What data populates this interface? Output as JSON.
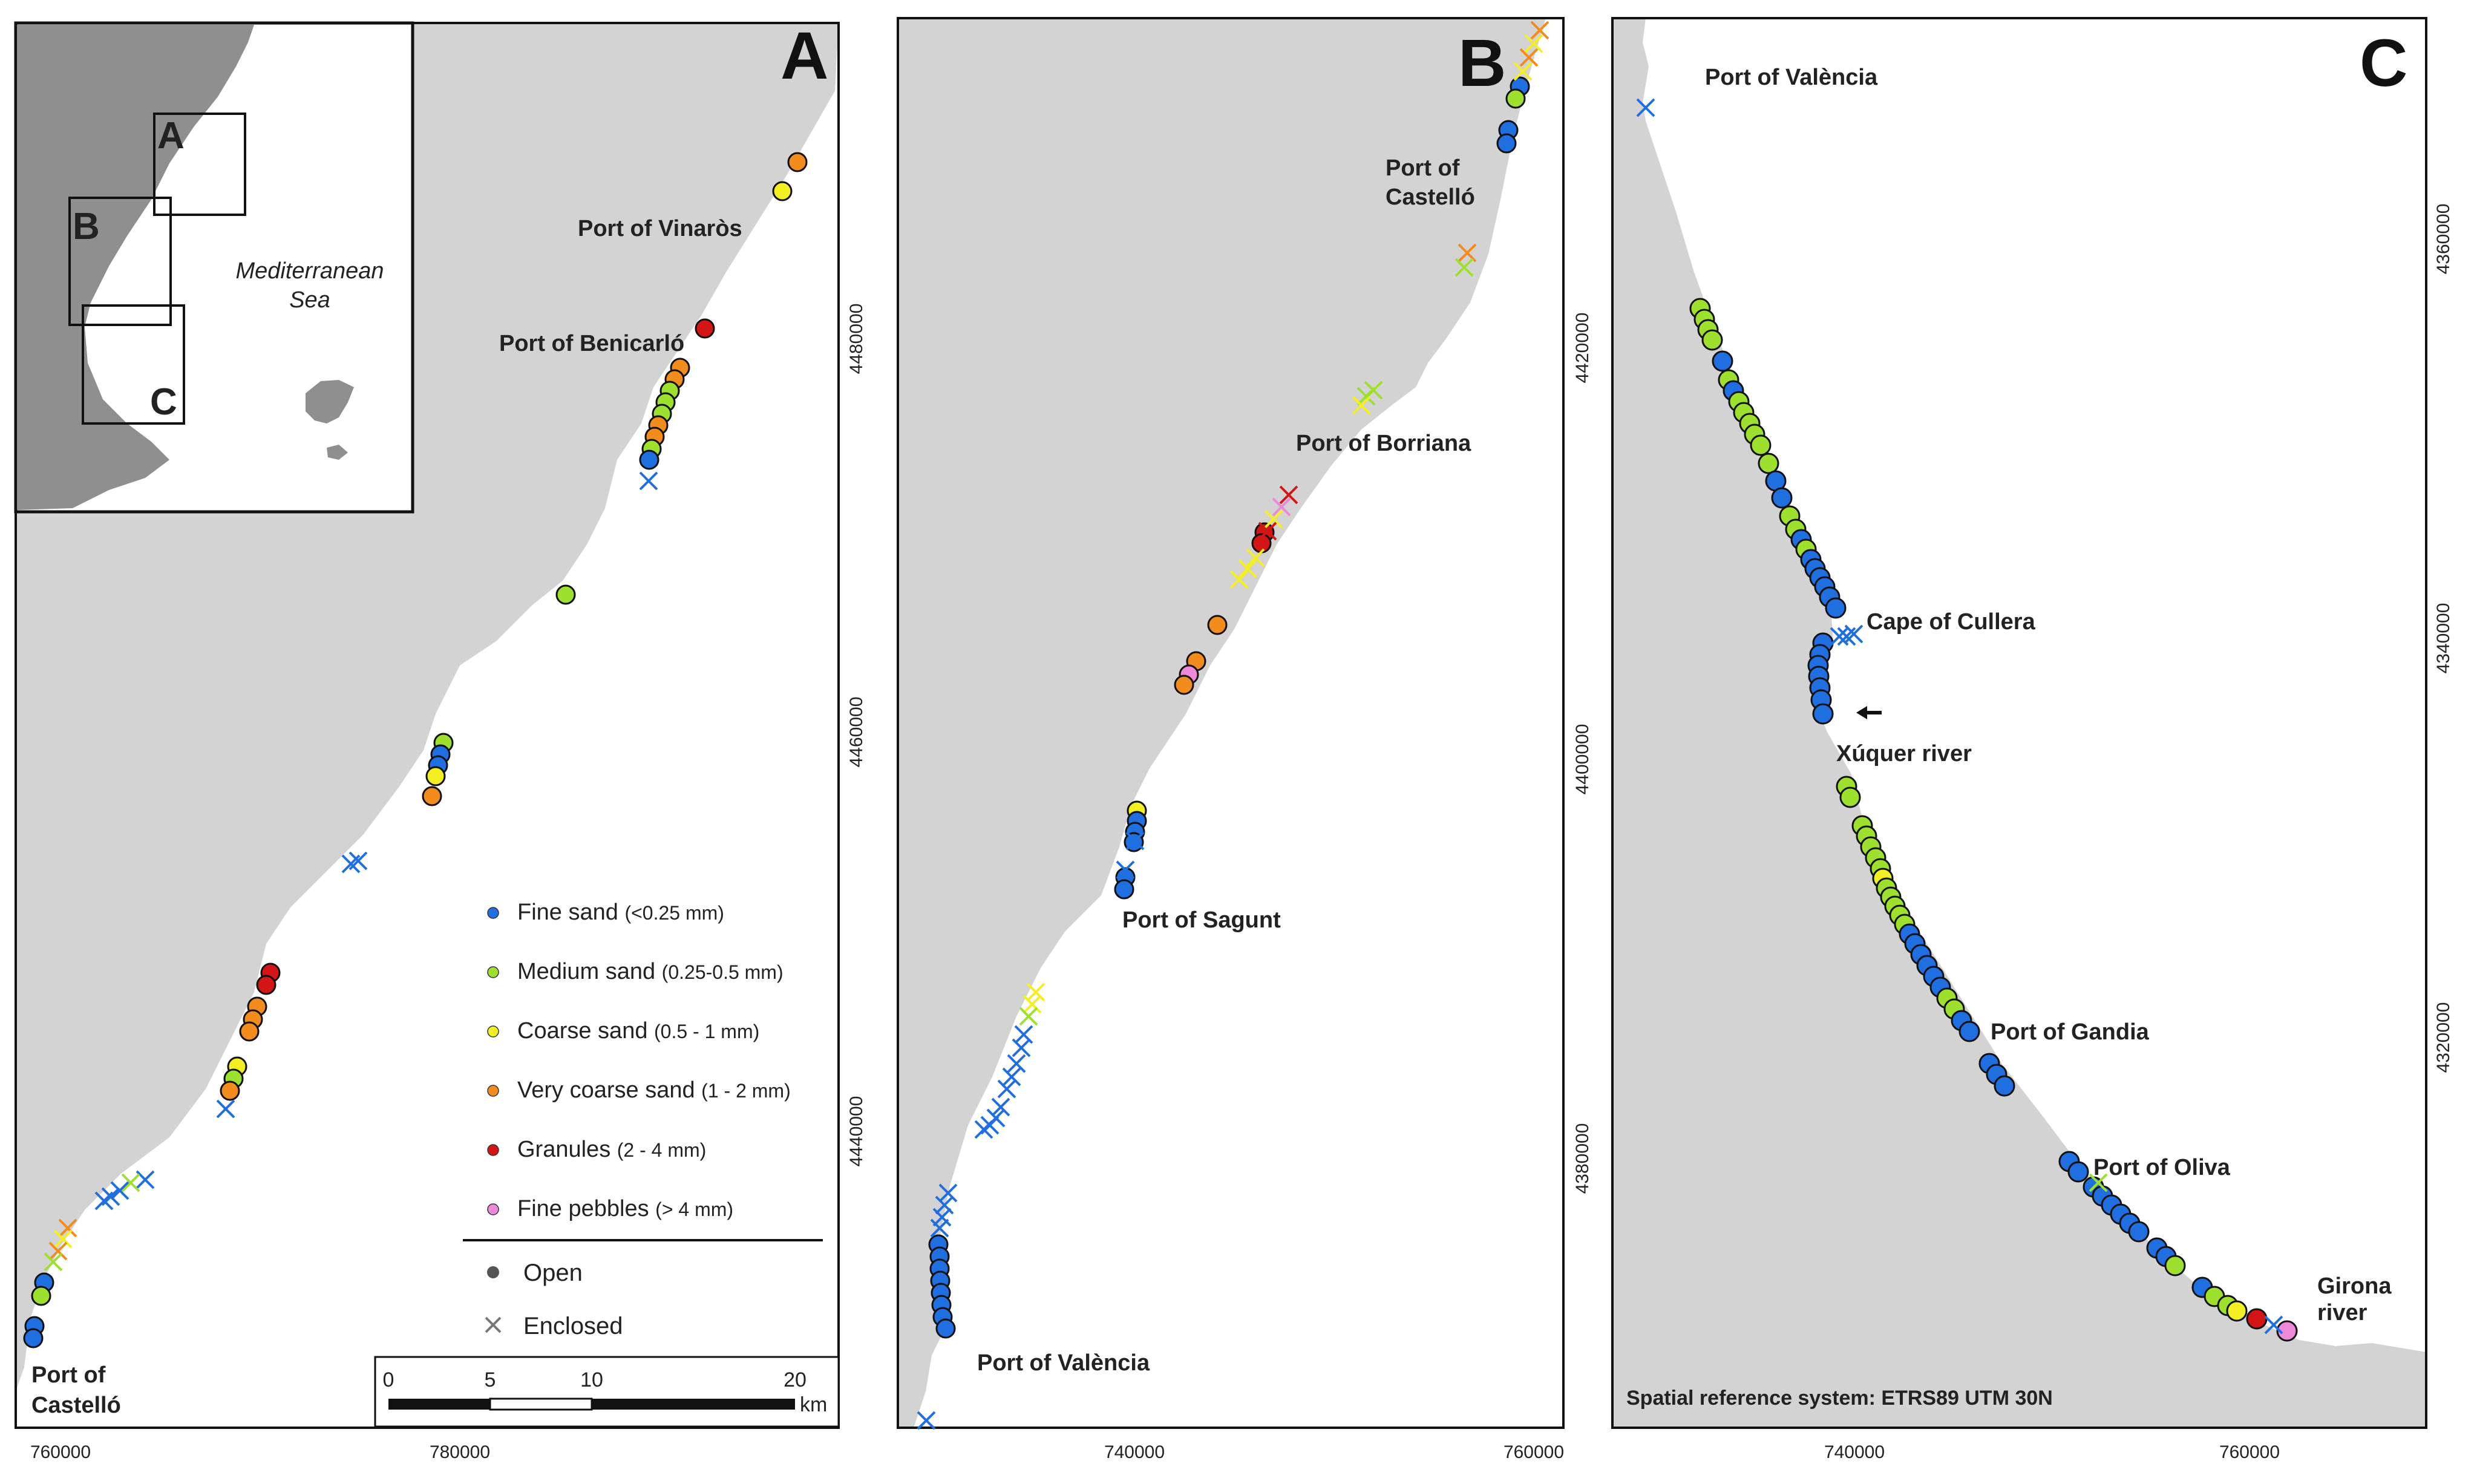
{
  "panels": {
    "A": {
      "letter": "A",
      "labels": {
        "vinaros": "Port of Vinaròs",
        "benicarlo": "Port of Benicarló",
        "castello_1": "Port of",
        "castello_2": "Castelló"
      },
      "x_ticks": [
        "760000",
        "780000"
      ],
      "y_ticks": [
        "4480000",
        "4460000",
        "4440000"
      ],
      "inset": {
        "sea_1": "Mediterranean",
        "sea_2": "Sea",
        "box_a": "A",
        "box_b": "B",
        "box_c": "C"
      },
      "scalebar": {
        "ticks": [
          "0",
          "5",
          "10",
          "20"
        ],
        "unit": "km"
      },
      "legend": {
        "items": [
          {
            "name": "Fine sand",
            "range": "(<0.25 mm)",
            "color": "#1f6fe0"
          },
          {
            "name": "Medium sand",
            "range": "(0.25-0.5 mm)",
            "color": "#9ee02e"
          },
          {
            "name": "Coarse sand",
            "range": "(0.5 - 1 mm)",
            "color": "#f3ef23"
          },
          {
            "name": "Very coarse sand",
            "range": "(1 - 2 mm)",
            "color": "#f28c1c"
          },
          {
            "name": "Granules",
            "range": "(2 - 4 mm)",
            "color": "#d41515"
          },
          {
            "name": "Fine pebbles",
            "range": "(> 4 mm)",
            "color": "#ee88d8"
          }
        ],
        "open": "Open",
        "enclosed": "Enclosed"
      }
    },
    "B": {
      "letter": "B",
      "labels": {
        "castello_1": "Port of",
        "castello_2": "Castelló",
        "borriana": "Port of Borriana",
        "sagunt": "Port of Sagunt",
        "valencia": "Port of València"
      },
      "x_ticks": [
        "740000",
        "760000"
      ],
      "y_ticks": [
        "4420000",
        "4400000",
        "4380000"
      ]
    },
    "C": {
      "letter": "C",
      "labels": {
        "valencia": "Port of València",
        "cullera": "Cape of Cullera",
        "xuquer": "Xúquer river",
        "gandia": "Port of Gandia",
        "oliva": "Port of Oliva",
        "girona_1": "Girona",
        "girona_2": "river"
      },
      "x_ticks": [
        "740000",
        "760000"
      ],
      "y_ticks": [
        "4360000",
        "4340000",
        "4320000"
      ],
      "srs": "Spatial reference system: ETRS89 UTM 30N"
    }
  },
  "colors": {
    "land": "#8f8f8f",
    "sea": "#d3d3d3",
    "fine": "#1f6fe0",
    "medium": "#9ee02e",
    "coarse": "#f3ef23",
    "vcoarse": "#f28c1c",
    "granule": "#d41515",
    "pebble": "#ee88d8"
  }
}
